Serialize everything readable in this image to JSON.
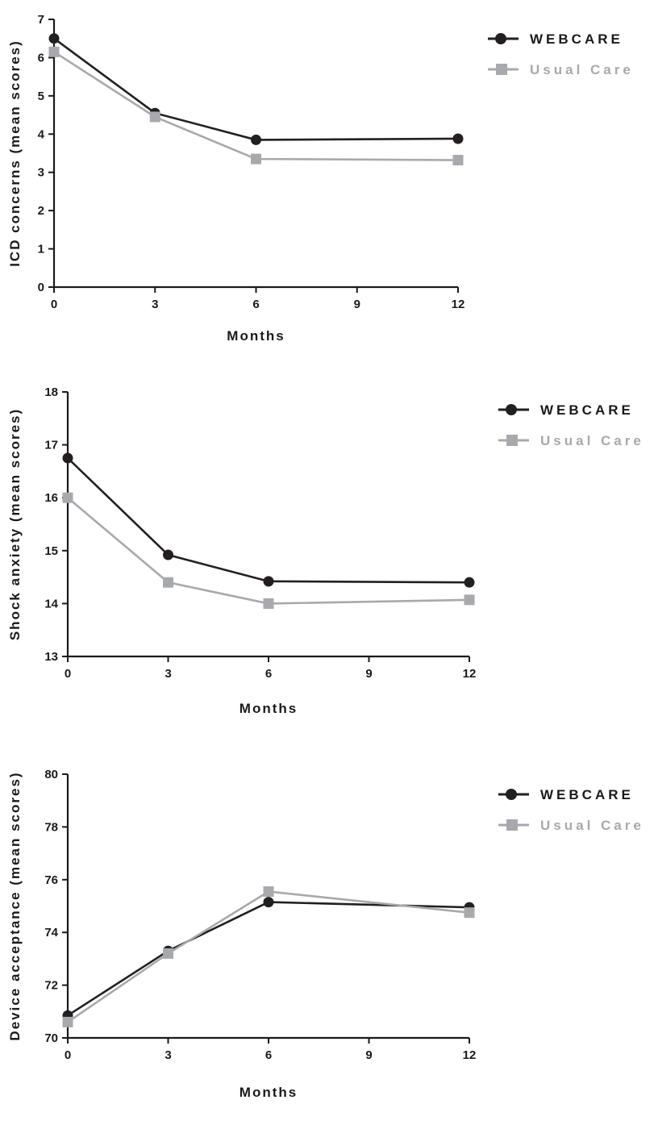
{
  "chart_data": [
    {
      "type": "line",
      "title": "",
      "xlabel": "Months",
      "ylabel": "ICD concerns (mean scores)",
      "x": [
        0,
        3,
        6,
        12
      ],
      "xticks": [
        0,
        3,
        6,
        9,
        12
      ],
      "xlim": [
        0,
        12
      ],
      "ylim": [
        0,
        7
      ],
      "yticks": [
        0,
        1,
        2,
        3,
        4,
        5,
        6,
        7
      ],
      "grid": false,
      "legend_position": "top-right",
      "series": [
        {
          "name": "WEBCARE",
          "values": [
            6.5,
            4.55,
            3.85,
            3.88
          ],
          "color": "#231f20",
          "marker": "circle"
        },
        {
          "name": "Usual Care",
          "values": [
            6.15,
            4.45,
            3.35,
            3.32
          ],
          "color": "#a7a9ac",
          "marker": "square"
        }
      ]
    },
    {
      "type": "line",
      "title": "",
      "xlabel": "Months",
      "ylabel": "Shock anxiety (mean scores)",
      "x": [
        0,
        3,
        6,
        12
      ],
      "xticks": [
        0,
        3,
        6,
        9,
        12
      ],
      "xlim": [
        0,
        12
      ],
      "ylim": [
        13,
        18
      ],
      "yticks": [
        13,
        14,
        15,
        16,
        17,
        18
      ],
      "grid": false,
      "legend_position": "top-right",
      "series": [
        {
          "name": "WEBCARE",
          "values": [
            16.75,
            14.92,
            14.42,
            14.4
          ],
          "color": "#231f20",
          "marker": "circle"
        },
        {
          "name": "Usual Care",
          "values": [
            16.0,
            14.4,
            14.0,
            14.07
          ],
          "color": "#a7a9ac",
          "marker": "square"
        }
      ]
    },
    {
      "type": "line",
      "title": "",
      "xlabel": "Months",
      "ylabel": "Device acceptance (mean scores)",
      "x": [
        0,
        3,
        6,
        12
      ],
      "xticks": [
        0,
        3,
        6,
        9,
        12
      ],
      "xlim": [
        0,
        12
      ],
      "ylim": [
        70,
        80
      ],
      "yticks": [
        70,
        72,
        74,
        76,
        78,
        80
      ],
      "grid": false,
      "legend_position": "top-right",
      "series": [
        {
          "name": "WEBCARE",
          "values": [
            70.85,
            73.3,
            75.15,
            74.95
          ],
          "color": "#231f20",
          "marker": "circle"
        },
        {
          "name": "Usual Care",
          "values": [
            70.6,
            73.2,
            75.55,
            74.75
          ],
          "color": "#a7a9ac",
          "marker": "square"
        }
      ]
    }
  ]
}
